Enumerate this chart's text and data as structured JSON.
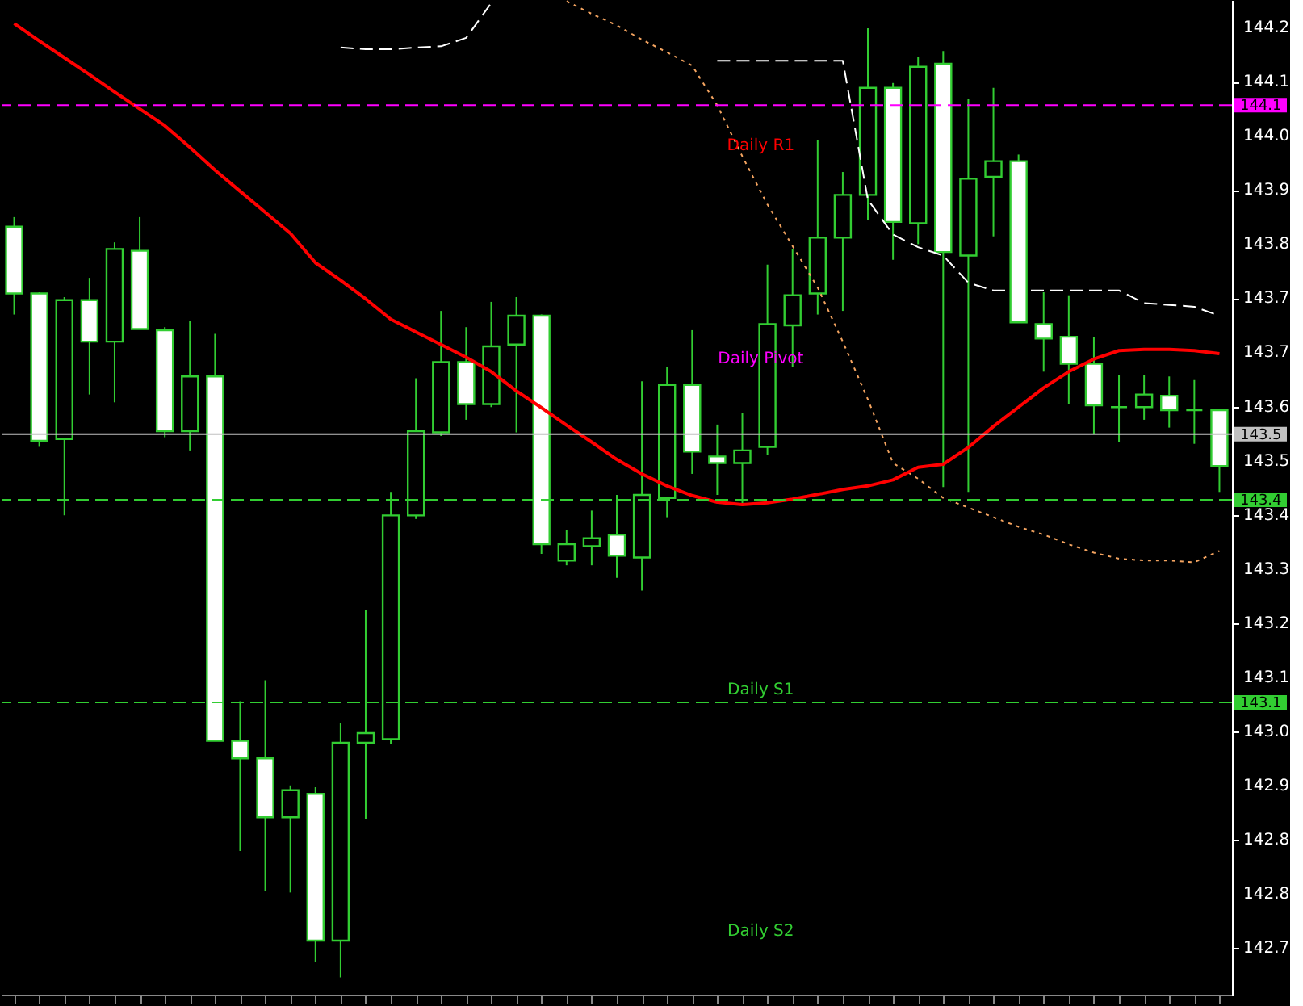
{
  "chart_data": {
    "type": "candlestick",
    "categories": [
      null,
      null,
      null,
      null,
      null,
      null,
      null,
      null,
      null,
      null,
      null,
      null,
      null,
      null,
      null,
      null,
      null,
      null,
      null,
      null,
      null,
      null,
      null,
      null,
      null,
      null,
      null,
      null,
      null,
      null,
      null,
      null,
      null,
      null,
      null,
      null,
      null,
      null,
      null,
      null,
      null,
      null,
      null,
      null,
      null,
      null,
      null,
      null,
      null
    ],
    "color": "#32cd32",
    "colors": [
      "#ffffff",
      "#ffffff",
      "#000000",
      "#ffffff",
      "#000000",
      "#ffffff",
      "#ffffff",
      "#000000",
      "#ffffff",
      "#ffffff",
      "#ffffff",
      "#000000",
      "#ffffff",
      "#000000",
      "#000000",
      "#000000",
      "#000000",
      "#000000",
      "#ffffff",
      "#000000",
      "#000000",
      "#ffffff",
      "#000000",
      "#000000",
      "#ffffff",
      "#000000",
      "#000000",
      "#ffffff",
      "#ffffff",
      "#000000",
      "#000000",
      "#000000",
      "#000000",
      "#000000",
      "#000000",
      "#ffffff",
      "#000000",
      "#ffffff",
      "#000000",
      "#000000",
      "#ffffff",
      "#ffffff",
      "#ffffff",
      "#ffffff",
      "#32cd32",
      "#000000",
      "#ffffff",
      "#32cd32",
      "#ffffff"
    ],
    "ohlc": [
      [
        143.864,
        143.88,
        143.718,
        143.753
      ],
      [
        143.753,
        143.755,
        143.498,
        143.508
      ],
      [
        143.511,
        143.747,
        143.384,
        143.742
      ],
      [
        143.742,
        143.779,
        143.585,
        143.673
      ],
      [
        143.673,
        143.838,
        143.572,
        143.827
      ],
      [
        143.824,
        143.88,
        143.694,
        143.694
      ],
      [
        143.692,
        143.697,
        143.514,
        143.524
      ],
      [
        143.524,
        143.708,
        143.492,
        143.615
      ],
      [
        143.615,
        143.686,
        143.009,
        143.009
      ],
      [
        143.009,
        143.075,
        142.826,
        142.98
      ],
      [
        142.98,
        143.11,
        142.759,
        142.882
      ],
      [
        142.882,
        142.935,
        142.757,
        142.927
      ],
      [
        142.921,
        142.932,
        142.642,
        142.677
      ],
      [
        142.677,
        143.038,
        142.616,
        143.006
      ],
      [
        143.006,
        143.227,
        142.879,
        143.022
      ],
      [
        143.012,
        143.423,
        143.004,
        143.384
      ],
      [
        143.384,
        143.612,
        143.378,
        143.524
      ],
      [
        143.522,
        143.724,
        143.516,
        143.639
      ],
      [
        143.639,
        143.697,
        143.543,
        143.569
      ],
      [
        143.569,
        143.739,
        143.564,
        143.665
      ],
      [
        143.668,
        143.747,
        143.522,
        143.716
      ],
      [
        143.716,
        143.718,
        143.32,
        143.336
      ],
      [
        143.309,
        143.36,
        143.301,
        143.336
      ],
      [
        143.333,
        143.392,
        143.301,
        143.346
      ],
      [
        143.352,
        143.418,
        143.28,
        143.317
      ],
      [
        143.314,
        143.607,
        143.259,
        143.418
      ],
      [
        143.413,
        143.631,
        143.381,
        143.601
      ],
      [
        143.601,
        143.692,
        143.453,
        143.49
      ],
      [
        143.482,
        143.535,
        143.418,
        143.471
      ],
      [
        143.471,
        143.554,
        143.402,
        143.492
      ],
      [
        143.498,
        143.801,
        143.484,
        143.702
      ],
      [
        143.7,
        143.827,
        143.631,
        143.75
      ],
      [
        143.753,
        144.008,
        143.718,
        143.846
      ],
      [
        143.846,
        143.955,
        143.724,
        143.917
      ],
      [
        143.917,
        144.194,
        143.875,
        144.095
      ],
      [
        144.095,
        144.103,
        143.809,
        143.872
      ],
      [
        143.87,
        144.146,
        143.835,
        144.13
      ],
      [
        144.135,
        144.156,
        143.431,
        143.822
      ],
      [
        143.816,
        144.077,
        143.423,
        143.944
      ],
      [
        143.947,
        144.095,
        143.848,
        143.973
      ],
      [
        143.973,
        143.984,
        143.705,
        143.705
      ],
      [
        143.702,
        143.755,
        143.623,
        143.678
      ],
      [
        143.681,
        143.75,
        143.569,
        143.636
      ],
      [
        143.636,
        143.681,
        143.519,
        143.567
      ],
      [
        143.564,
        143.617,
        143.506,
        143.564
      ],
      [
        143.564,
        143.617,
        143.543,
        143.585
      ],
      [
        143.583,
        143.615,
        143.53,
        143.559
      ],
      [
        143.559,
        143.609,
        143.503,
        143.559
      ],
      [
        143.559,
        143.559,
        143.423,
        143.466
      ]
    ],
    "series": [
      {
        "type": "line",
        "color": "#ffffff",
        "line_style": "dashed",
        "values": [
          null,
          null,
          null,
          null,
          null,
          null,
          null,
          null,
          null,
          null,
          null,
          null,
          null,
          144.162,
          144.159,
          144.159,
          144.162,
          144.164,
          144.178,
          144.236,
          null,
          null,
          null,
          null,
          null,
          null,
          null,
          null,
          null,
          null,
          null,
          null,
          null,
          null,
          null,
          null,
          null,
          null,
          null,
          null,
          null,
          null,
          null,
          null,
          null,
          null,
          null,
          null,
          null
        ]
      },
      {
        "type": "line",
        "color": "#ffffff",
        "line_style": "dashed",
        "values": [
          null,
          null,
          null,
          null,
          null,
          null,
          null,
          null,
          null,
          null,
          null,
          null,
          null,
          null,
          null,
          null,
          null,
          null,
          null,
          null,
          null,
          null,
          null,
          null,
          null,
          null,
          null,
          null,
          144.14,
          144.14,
          144.14,
          144.14,
          144.14,
          144.14,
          143.909,
          143.851,
          143.83,
          143.816,
          143.771,
          143.758,
          143.758,
          143.758,
          143.758,
          143.758,
          143.758,
          143.737,
          143.734,
          143.731,
          143.716
        ]
      },
      {
        "type": "line",
        "color": "#f4a460",
        "line_style": "dotted",
        "values": [
          null,
          null,
          null,
          null,
          null,
          null,
          null,
          null,
          null,
          null,
          null,
          null,
          null,
          null,
          null,
          null,
          null,
          null,
          null,
          null,
          null,
          null,
          144.239,
          144.218,
          144.199,
          144.175,
          144.154,
          144.132,
          144.066,
          143.981,
          143.901,
          143.832,
          143.763,
          143.673,
          143.577,
          143.471,
          143.445,
          143.413,
          143.397,
          143.381,
          143.365,
          143.352,
          143.336,
          143.322,
          143.312,
          143.309,
          143.309,
          143.306,
          143.325
        ]
      },
      {
        "type": "line",
        "color": "#ff0000",
        "line_style": "solid",
        "values": [
          144.202,
          144.173,
          144.145,
          144.117,
          144.088,
          144.06,
          144.032,
          143.996,
          143.958,
          143.923,
          143.888,
          143.853,
          143.804,
          143.775,
          143.744,
          143.71,
          143.689,
          143.668,
          143.647,
          143.623,
          143.591,
          143.563,
          143.534,
          143.506,
          143.477,
          143.453,
          143.433,
          143.417,
          143.406,
          143.402,
          143.405,
          143.411,
          143.419,
          143.427,
          143.433,
          143.443,
          143.464,
          143.469,
          143.497,
          143.532,
          143.564,
          143.596,
          143.623,
          143.644,
          143.658,
          143.66,
          143.66,
          143.658,
          143.653
        ]
      }
    ],
    "ylim": [
      142.587,
      144.241
    ],
    "yticks": [
      {
        "value": 144.195,
        "label": "144.2"
      },
      {
        "value": 144.105,
        "label": "144.1"
      },
      {
        "value": 144.015,
        "label": "144.0"
      },
      {
        "value": 143.925,
        "label": "143.9"
      },
      {
        "value": 143.835,
        "label": "143.8"
      },
      {
        "value": 143.745,
        "label": "143.7"
      },
      {
        "value": 143.655,
        "label": "143.7"
      },
      {
        "value": 143.565,
        "label": "143.6"
      },
      {
        "value": 143.475,
        "label": "143.5"
      },
      {
        "value": 143.385,
        "label": "143.4"
      },
      {
        "value": 143.295,
        "label": "143.3"
      },
      {
        "value": 143.205,
        "label": "143.2"
      },
      {
        "value": 143.115,
        "label": "143.1"
      },
      {
        "value": 143.025,
        "label": "143.0"
      },
      {
        "value": 142.935,
        "label": "142.9"
      },
      {
        "value": 142.845,
        "label": "142.8"
      },
      {
        "value": 142.755,
        "label": "142.8"
      },
      {
        "value": 142.665,
        "label": "142.7"
      }
    ],
    "tick_labels": "y",
    "grid": false,
    "ref_lines": [
      {
        "axis": "y",
        "value": 144.066,
        "label": "144.1",
        "color": "#ff00ff",
        "line_style": "dashed"
      },
      {
        "axis": "y",
        "value": 143.519,
        "label": "143.5",
        "color": "#c0c0c0",
        "line_style": "solid"
      },
      {
        "axis": "y",
        "value": 143.41,
        "label": "143.4",
        "color": "#32cd32",
        "line_style": "dashed"
      },
      {
        "axis": "y",
        "value": 143.073,
        "label": "143.1",
        "color": "#32cd32",
        "line_style": "dashed"
      }
    ],
    "annotations": [
      "Daily R1",
      {
        "text": "Daily Pivot",
        "y": 143.623
      },
      {
        "text": "Daily S1",
        "y": 143.073
      },
      "Daily S2"
    ]
  }
}
